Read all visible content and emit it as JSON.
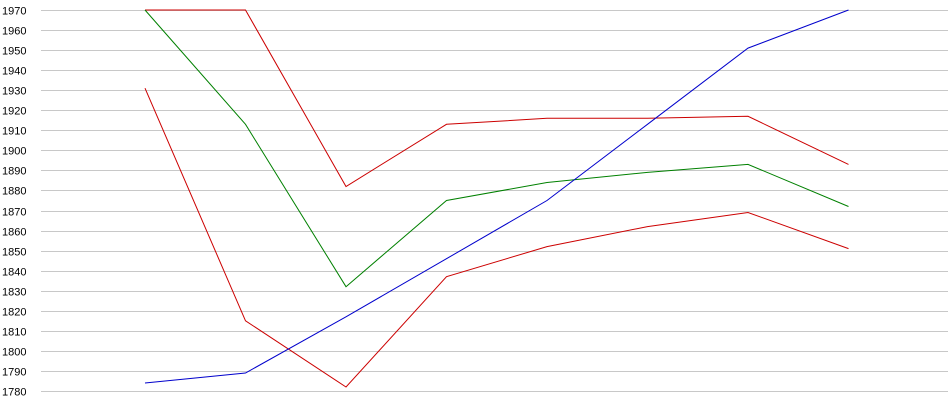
{
  "chart_data": {
    "type": "line",
    "title": "",
    "xlabel": "",
    "ylabel": "",
    "ylim": [
      1780,
      1970
    ],
    "yticks": [
      1780,
      1790,
      1800,
      1810,
      1820,
      1830,
      1840,
      1850,
      1860,
      1870,
      1880,
      1890,
      1900,
      1910,
      1920,
      1930,
      1940,
      1950,
      1960,
      1970
    ],
    "x": [
      1,
      2,
      3,
      4,
      5,
      6,
      7,
      8
    ],
    "grid": true,
    "legend": "none",
    "series": [
      {
        "color": "#cc0000",
        "values": [
          1970,
          1970,
          1882,
          1913,
          1916,
          1916,
          1917,
          1893
        ]
      },
      {
        "color": "#008000",
        "values": [
          1970,
          1913,
          1832,
          1875,
          1884,
          1889,
          1893,
          1872
        ]
      },
      {
        "color": "#cc0000",
        "values": [
          1931,
          1815,
          1782,
          1837,
          1852,
          1862,
          1869,
          1851
        ]
      },
      {
        "color": "#0000cc",
        "values": [
          1784,
          1789,
          1817,
          1846,
          1875,
          1913,
          1951,
          1970
        ]
      }
    ]
  }
}
